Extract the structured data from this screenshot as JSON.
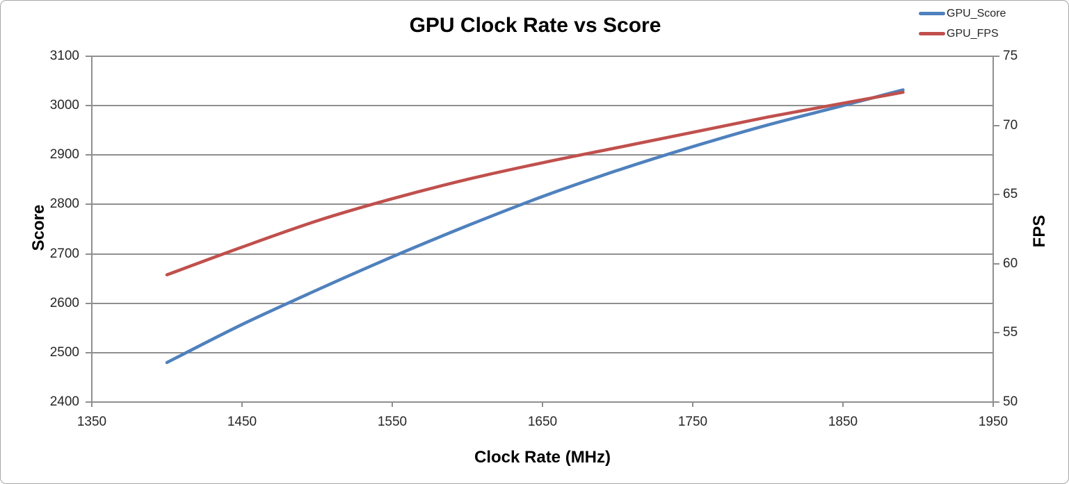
{
  "chart": {
    "title": "GPU Clock Rate vs Score",
    "x_axis": {
      "title": "Clock Rate (MHz)",
      "tick_labels": [
        "1350",
        "1450",
        "1550",
        "1650",
        "1750",
        "1850",
        "1950"
      ]
    },
    "y_axis_left": {
      "title": "Score",
      "tick_labels": [
        "3100",
        "3000",
        "2900",
        "2800",
        "2700",
        "2600",
        "2500",
        "2400"
      ]
    },
    "y_axis_right": {
      "title": "FPS",
      "tick_labels": [
        "75",
        "70",
        "65",
        "60",
        "55",
        "50"
      ]
    },
    "legend": [
      {
        "label": "GPU_Score",
        "color": "#4F81BD"
      },
      {
        "label": "GPU_FPS",
        "color": "#C0504D"
      }
    ]
  },
  "colors": {
    "gpu_score_line": "#4F81BD",
    "gpu_fps_line": "#C0504D",
    "grid": "#8f8f8f",
    "tick_text": "#262626",
    "title_text": "#000000"
  },
  "chart_data": {
    "type": "line",
    "title": "GPU Clock Rate vs Score",
    "xlabel": "Clock Rate (MHz)",
    "ylabel_left": "Score",
    "ylabel_right": "FPS",
    "x": [
      1400,
      1450,
      1500,
      1550,
      1600,
      1650,
      1700,
      1750,
      1800,
      1850,
      1890
    ],
    "series": [
      {
        "name": "GPU_Score",
        "axis": "left",
        "color": "#4F81BD",
        "values": [
          2480,
          2557,
          2627,
          2694,
          2757,
          2816,
          2869,
          2917,
          2961,
          3000,
          3032
        ]
      },
      {
        "name": "GPU_FPS",
        "axis": "right",
        "color": "#C0504D",
        "values": [
          59.2,
          61.2,
          63.1,
          64.7,
          66.1,
          67.3,
          68.4,
          69.5,
          70.6,
          71.6,
          72.4
        ]
      }
    ],
    "xlim": [
      1350,
      1950
    ],
    "ylim_left": [
      2400,
      3100
    ],
    "ylim_right": [
      50,
      75
    ],
    "x_ticks": [
      1350,
      1450,
      1550,
      1650,
      1750,
      1850,
      1950
    ],
    "y_ticks_left": [
      2400,
      2500,
      2600,
      2700,
      2800,
      2900,
      3000,
      3100
    ],
    "y_ticks_right": [
      50,
      55,
      60,
      65,
      70,
      75
    ],
    "grid": "horizontal",
    "legend_position": "top-right"
  }
}
